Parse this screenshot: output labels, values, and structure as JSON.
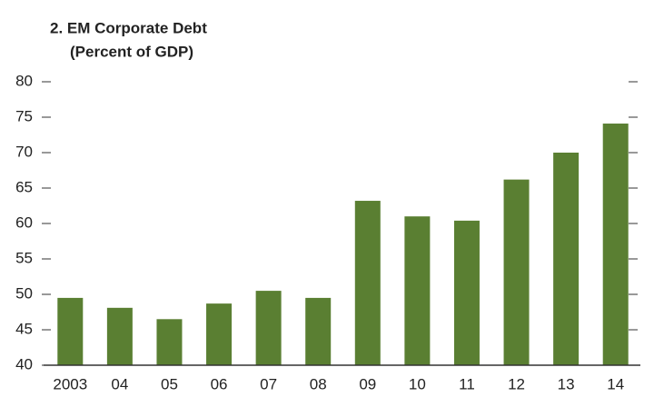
{
  "chart_data": {
    "type": "bar",
    "title": "2. EM Corporate Debt",
    "subtitle": "(Percent of GDP)",
    "categories": [
      "2003",
      "04",
      "05",
      "06",
      "07",
      "08",
      "09",
      "10",
      "11",
      "12",
      "13",
      "14"
    ],
    "values": [
      49.5,
      48.1,
      46.5,
      48.7,
      50.5,
      49.5,
      63.2,
      61,
      60.4,
      66.2,
      70,
      74.1
    ],
    "color": "#5a7f32",
    "ylim": [
      40,
      80
    ],
    "yticks": [
      40,
      45,
      50,
      55,
      60,
      65,
      70,
      75,
      80
    ],
    "grid": false
  }
}
